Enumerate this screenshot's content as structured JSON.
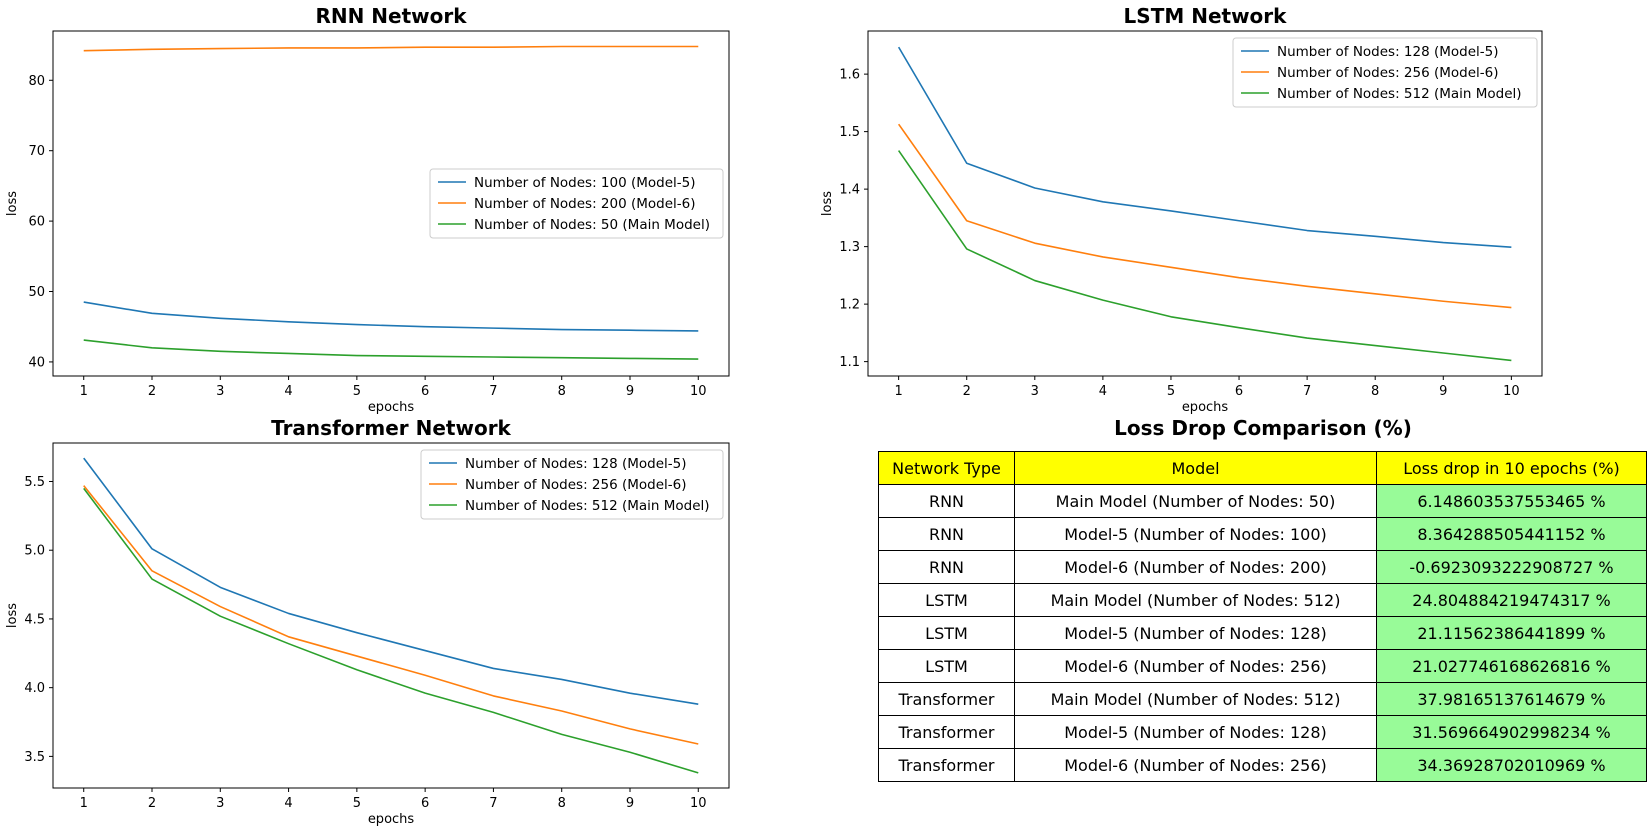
{
  "chart_data": [
    {
      "type": "line",
      "title": "RNN Network",
      "xlabel": "epochs",
      "ylabel": "loss",
      "x": [
        1,
        2,
        3,
        4,
        5,
        6,
        7,
        8,
        9,
        10
      ],
      "xlim": [
        0.55,
        10.45
      ],
      "ylim": [
        38.0,
        87.0
      ],
      "yticks": [
        40,
        50,
        60,
        70,
        80
      ],
      "legend_position": "center-right",
      "series": [
        {
          "name": "Number of Nodes: 100 (Model-5)",
          "color": "#1f77b4",
          "values": [
            48.5,
            46.9,
            46.2,
            45.7,
            45.3,
            45.0,
            44.8,
            44.6,
            44.5,
            44.4
          ]
        },
        {
          "name": "Number of Nodes: 200 (Model-6)",
          "color": "#ff7f0e",
          "values": [
            84.2,
            84.4,
            84.5,
            84.6,
            84.6,
            84.7,
            84.7,
            84.8,
            84.8,
            84.8
          ]
        },
        {
          "name": "Number of Nodes: 50 (Main Model)",
          "color": "#2ca02c",
          "values": [
            43.1,
            42.0,
            41.5,
            41.2,
            40.9,
            40.8,
            40.7,
            40.6,
            40.5,
            40.4
          ]
        }
      ]
    },
    {
      "type": "line",
      "title": "LSTM Network",
      "xlabel": "epochs",
      "ylabel": "loss",
      "x": [
        1,
        2,
        3,
        4,
        5,
        6,
        7,
        8,
        9,
        10
      ],
      "xlim": [
        0.55,
        10.45
      ],
      "ylim": [
        1.075,
        1.675
      ],
      "yticks": [
        1.1,
        1.2,
        1.3,
        1.4,
        1.5,
        1.6
      ],
      "legend_position": "upper-right",
      "series": [
        {
          "name": "Number of Nodes: 128 (Model-5)",
          "color": "#1f77b4",
          "values": [
            1.647,
            1.445,
            1.402,
            1.378,
            1.362,
            1.345,
            1.328,
            1.318,
            1.307,
            1.299
          ]
        },
        {
          "name": "Number of Nodes: 256 (Model-6)",
          "color": "#ff7f0e",
          "values": [
            1.513,
            1.345,
            1.306,
            1.282,
            1.264,
            1.246,
            1.231,
            1.218,
            1.205,
            1.194
          ]
        },
        {
          "name": "Number of Nodes: 512 (Main Model)",
          "color": "#2ca02c",
          "values": [
            1.467,
            1.296,
            1.241,
            1.207,
            1.178,
            1.159,
            1.141,
            1.128,
            1.115,
            1.102
          ]
        }
      ]
    },
    {
      "type": "line",
      "title": "Transformer Network",
      "xlabel": "epochs",
      "ylabel": "loss",
      "x": [
        1,
        2,
        3,
        4,
        5,
        6,
        7,
        8,
        9,
        10
      ],
      "xlim": [
        0.55,
        10.45
      ],
      "ylim": [
        3.27,
        5.78
      ],
      "yticks": [
        3.5,
        4.0,
        4.5,
        5.0,
        5.5
      ],
      "legend_position": "upper-right",
      "series": [
        {
          "name": "Number of Nodes: 128 (Model-5)",
          "color": "#1f77b4",
          "values": [
            5.67,
            5.01,
            4.73,
            4.54,
            4.4,
            4.27,
            4.14,
            4.06,
            3.96,
            3.88
          ]
        },
        {
          "name": "Number of Nodes: 256 (Model-6)",
          "color": "#ff7f0e",
          "values": [
            5.47,
            4.85,
            4.59,
            4.37,
            4.23,
            4.09,
            3.94,
            3.83,
            3.7,
            3.59
          ]
        },
        {
          "name": "Number of Nodes: 512 (Main Model)",
          "color": "#2ca02c",
          "values": [
            5.45,
            4.79,
            4.52,
            4.32,
            4.13,
            3.96,
            3.82,
            3.66,
            3.53,
            3.38
          ]
        }
      ]
    },
    {
      "type": "table",
      "title": "Loss Drop Comparison (%)",
      "columns": [
        "Network Type",
        "Model",
        "Loss drop in 10 epochs (%)"
      ],
      "header_color": "#ffff00",
      "value_color": "#98fb98",
      "rows": [
        [
          "RNN",
          "Main Model (Number of Nodes: 50)",
          "6.148603537553465 %"
        ],
        [
          "RNN",
          "Model-5 (Number of Nodes: 100)",
          "8.364288505441152 %"
        ],
        [
          "RNN",
          "Model-6 (Number of Nodes: 200)",
          "-0.6923093222908727 %"
        ],
        [
          "LSTM",
          "Main Model (Number of Nodes: 512)",
          "24.804884219474317 %"
        ],
        [
          "LSTM",
          "Model-5 (Number of Nodes: 128)",
          "21.11562386441899 %"
        ],
        [
          "LSTM",
          "Model-6 (Number of Nodes: 256)",
          "21.027746168626816 %"
        ],
        [
          "Transformer",
          "Main Model (Number of Nodes: 512)",
          "37.98165137614679 %"
        ],
        [
          "Transformer",
          "Model-5 (Number of Nodes: 128)",
          "31.569664902998234 %"
        ],
        [
          "Transformer",
          "Model-6 (Number of Nodes: 256)",
          "34.36928702010969 %"
        ]
      ]
    }
  ]
}
